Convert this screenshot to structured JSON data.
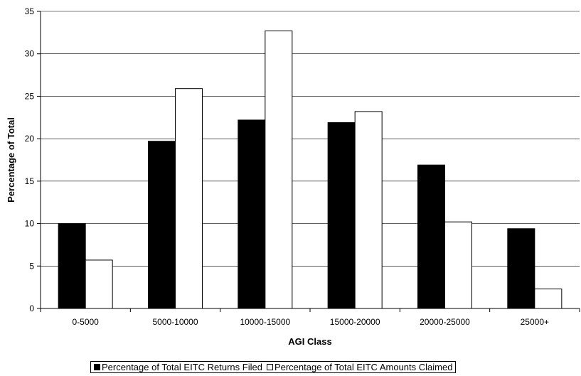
{
  "chart_data": {
    "type": "bar",
    "title": "",
    "xlabel": "AGI Class",
    "ylabel": "Percentage of Total",
    "ylim": [
      0,
      35
    ],
    "yticks": [
      0,
      5,
      10,
      15,
      20,
      25,
      30,
      35
    ],
    "grid": true,
    "legend_position": "bottom",
    "categories": [
      "0-5000",
      "5000-10000",
      "10000-15000",
      "15000-20000",
      "20000-25000",
      "25000+"
    ],
    "series": [
      {
        "name": "Percentage of Total EITC Returns Filed",
        "color": "#000000",
        "values": [
          10.0,
          19.7,
          22.2,
          21.9,
          16.9,
          9.4
        ]
      },
      {
        "name": "Percentage of Total EITC Amounts Claimed",
        "color": "#ffffff",
        "values": [
          5.7,
          25.9,
          32.7,
          23.2,
          10.2,
          2.3
        ]
      }
    ]
  }
}
